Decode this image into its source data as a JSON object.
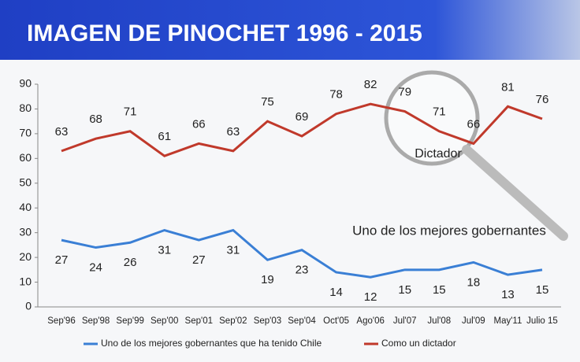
{
  "chart_data": {
    "type": "line",
    "title": "IMAGEN DE PINOCHET 1996 - 2015",
    "categories": [
      "Sep'96",
      "Sep'98",
      "Sep'99",
      "Sep'00",
      "Sep'01",
      "Sep'02",
      "Sep'03",
      "Sep'04",
      "Oct'05",
      "Ago'06",
      "Jul'07",
      "Jul'08",
      "Jul'09",
      "May'11",
      "Julio 15"
    ],
    "series": [
      {
        "name": "Uno de los mejores gobernantes que ha tenido Chile",
        "color": "#3a7fd5",
        "values": [
          27,
          24,
          26,
          31,
          27,
          31,
          19,
          23,
          14,
          12,
          15,
          15,
          18,
          13,
          15
        ]
      },
      {
        "name": "Como un dictador",
        "color": "#c0392b",
        "values": [
          63,
          68,
          71,
          61,
          66,
          63,
          75,
          69,
          78,
          82,
          79,
          71,
          66,
          81,
          76
        ]
      }
    ],
    "annotations": [
      "Dictador",
      "Uno de los mejores gobernantes"
    ],
    "ylim": [
      0,
      90
    ],
    "yticks": [
      0,
      10,
      20,
      30,
      40,
      50,
      60,
      70,
      80,
      90
    ],
    "legend": "bottom"
  }
}
